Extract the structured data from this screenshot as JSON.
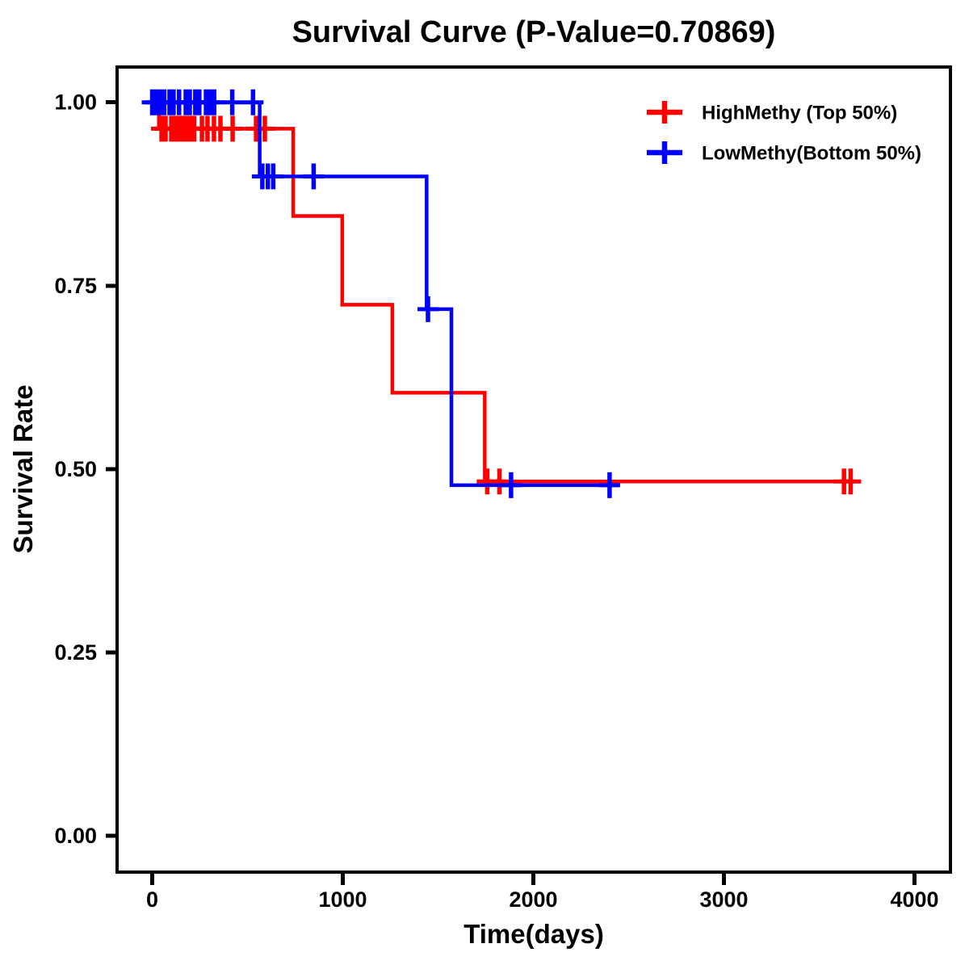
{
  "chart_data": {
    "type": "line",
    "subtype": "kaplan-meier-step",
    "title": "Survival Curve (P-Value=0.70869)",
    "p_value": "0.70869",
    "xlabel": "Time(days)",
    "ylabel": "Survival Rate",
    "xlim": [
      0,
      4000
    ],
    "ylim": [
      0.0,
      1.0
    ],
    "xticks": [
      "0",
      "1000",
      "2000",
      "3000",
      "4000"
    ],
    "xtick_values": [
      0,
      1000,
      2000,
      3000,
      4000
    ],
    "yticks": [
      "0.00",
      "0.25",
      "0.50",
      "0.75",
      "1.00"
    ],
    "ytick_values": [
      0.0,
      0.25,
      0.5,
      0.75,
      1.0
    ],
    "grid": false,
    "legend_position": "top-right",
    "background_color": "#ffffff",
    "frame_color": "#000000",
    "series": [
      {
        "id": "highmethy",
        "name": "HighMethy (Top 50%)",
        "color": "#ff0000",
        "steps": [
          [
            0,
            1.0
          ],
          [
            35,
            0.964
          ],
          [
            740,
            0.845
          ],
          [
            997,
            0.724
          ],
          [
            1260,
            0.604
          ],
          [
            1745,
            0.483
          ]
        ],
        "end_time": 3715,
        "censors": [
          [
            49,
            0.964
          ],
          [
            70,
            0.964
          ],
          [
            100,
            0.964
          ],
          [
            120,
            0.964
          ],
          [
            140,
            0.964
          ],
          [
            160,
            0.964
          ],
          [
            180,
            0.964
          ],
          [
            200,
            0.964
          ],
          [
            220,
            0.964
          ],
          [
            261,
            0.964
          ],
          [
            290,
            0.964
          ],
          [
            324,
            0.964
          ],
          [
            358,
            0.964
          ],
          [
            422,
            0.964
          ],
          [
            545,
            0.964
          ],
          [
            591,
            0.964
          ],
          [
            1758,
            0.483
          ],
          [
            1822,
            0.483
          ],
          [
            3630,
            0.483
          ],
          [
            3665,
            0.483
          ]
        ]
      },
      {
        "id": "lowmethy",
        "name": "LowMethy(Bottom 50%)",
        "color": "#0000ff",
        "steps": [
          [
            0,
            1.0
          ],
          [
            564,
            0.899
          ],
          [
            1440,
            0.718
          ],
          [
            1570,
            0.478
          ]
        ],
        "end_time": 2440,
        "censors": [
          [
            0,
            1.0
          ],
          [
            20,
            1.0
          ],
          [
            42,
            1.0
          ],
          [
            63,
            1.0
          ],
          [
            91,
            1.0
          ],
          [
            112,
            1.0
          ],
          [
            141,
            1.0
          ],
          [
            176,
            1.0
          ],
          [
            197,
            1.0
          ],
          [
            226,
            1.0
          ],
          [
            247,
            1.0
          ],
          [
            282,
            1.0
          ],
          [
            303,
            1.0
          ],
          [
            325,
            1.0
          ],
          [
            420,
            1.0
          ],
          [
            529,
            1.0
          ],
          [
            578,
            0.899
          ],
          [
            607,
            0.899
          ],
          [
            635,
            0.899
          ],
          [
            847,
            0.899
          ],
          [
            1447,
            0.718
          ],
          [
            1883,
            0.478
          ],
          [
            2400,
            0.478
          ]
        ]
      }
    ]
  }
}
